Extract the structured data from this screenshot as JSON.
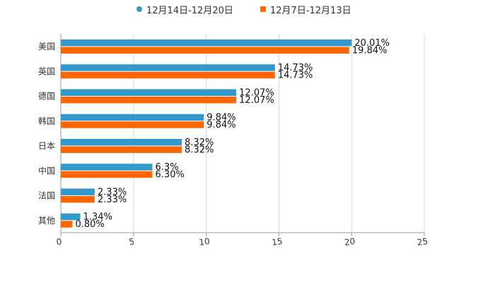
{
  "chart_data": {
    "type": "bar",
    "orientation": "horizontal",
    "title": "",
    "xlabel": "",
    "ylabel": "",
    "xlim": [
      0,
      25
    ],
    "xticks": [
      0,
      5,
      10,
      15,
      20,
      25
    ],
    "grid": true,
    "legend_position": "top",
    "categories": [
      "美国",
      "英国",
      "德国",
      "韩国",
      "日本",
      "中国",
      "法国",
      "其他"
    ],
    "series": [
      {
        "name": "12月14日-12月20日",
        "color": "#3399cc",
        "values": [
          20.01,
          14.73,
          12.07,
          9.84,
          8.32,
          6.3,
          2.33,
          1.34
        ],
        "labels": [
          "20.01%",
          "14.73%",
          "12.07%",
          "9.84%",
          "8.32%",
          "6.3%",
          "2.33%",
          "1.34%"
        ]
      },
      {
        "name": "12月7日-12月13日",
        "color": "#ff6600",
        "values": [
          19.84,
          14.73,
          12.07,
          9.84,
          8.32,
          6.3,
          2.33,
          0.8
        ],
        "labels": [
          "19.84%",
          "14.73%",
          "12.07%",
          "9.84%",
          "8.32%",
          "6.30%",
          "2.33%",
          "0.80%"
        ]
      }
    ]
  }
}
